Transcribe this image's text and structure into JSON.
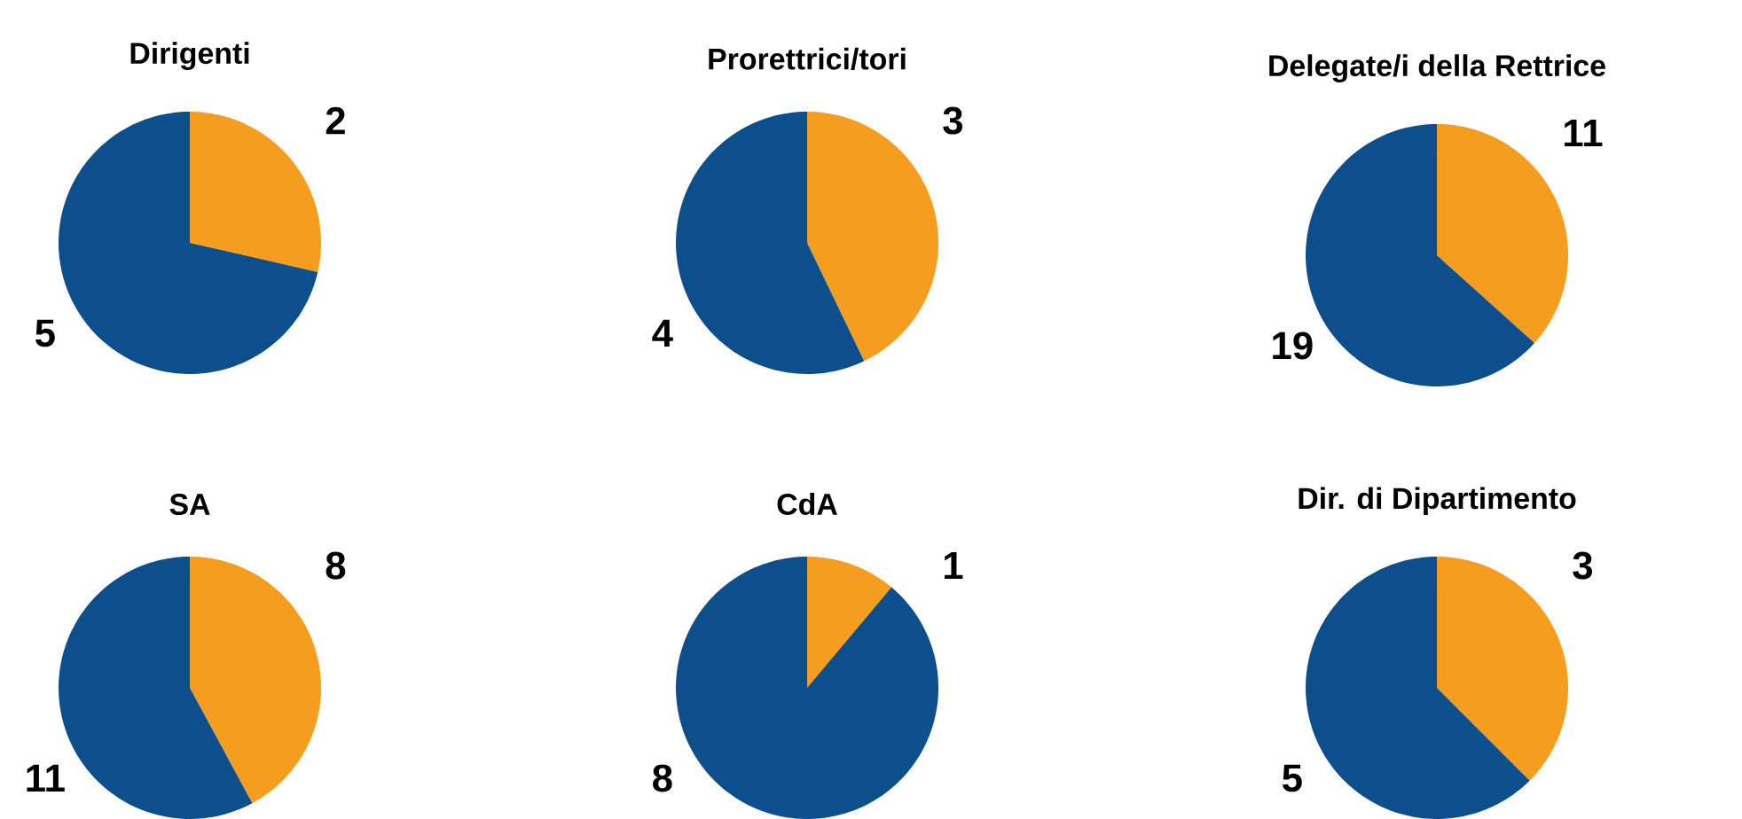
{
  "chart_data": [
    {
      "type": "pie",
      "title": "Dirigenti",
      "categories": [
        null,
        null
      ],
      "values": [
        2,
        5
      ],
      "colors": [
        "#f49d1e",
        "#0c4f8c"
      ],
      "data_labels": true
    },
    {
      "type": "pie",
      "title": "Prorettrici/tori",
      "categories": [
        null,
        null
      ],
      "values": [
        3,
        4
      ],
      "colors": [
        "#f49d1e",
        "#0c4f8c"
      ],
      "data_labels": true
    },
    {
      "type": "pie",
      "title": "Delegate/i della Rettrice",
      "categories": [
        null,
        null
      ],
      "values": [
        11,
        19
      ],
      "colors": [
        "#f49d1e",
        "#0c4f8c"
      ],
      "data_labels": true
    },
    {
      "type": "pie",
      "title": "SA",
      "categories": [
        null,
        null
      ],
      "values": [
        8,
        11
      ],
      "colors": [
        "#f49d1e",
        "#0c4f8c"
      ],
      "data_labels": true
    },
    {
      "type": "pie",
      "title": "CdA",
      "categories": [
        null,
        null
      ],
      "values": [
        1,
        8
      ],
      "colors": [
        "#f49d1e",
        "#0c4f8c"
      ],
      "data_labels": true
    },
    {
      "type": "pie",
      "title": "Dir. di Dipartimento",
      "categories": [
        null,
        null
      ],
      "values": [
        3,
        5
      ],
      "colors": [
        "#f49d1e",
        "#0c4f8c"
      ],
      "data_labels": true
    }
  ]
}
